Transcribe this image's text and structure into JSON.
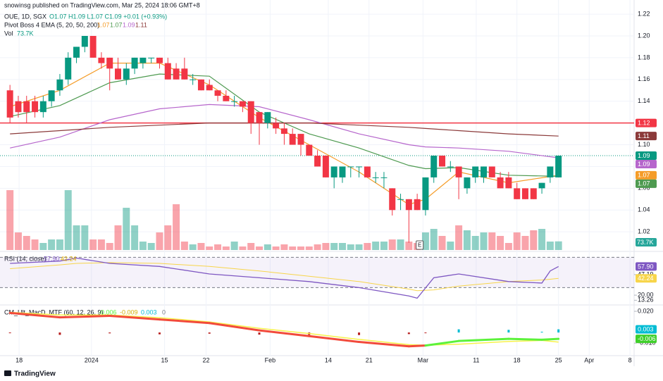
{
  "header": {
    "publisher": "snowinsg published on TradingView.com, Mar 25, 2024 18:06 GMT+8",
    "logo": "TradingView",
    "earnings_marker": "E"
  },
  "chart_data": [
    {
      "type": "candlestick",
      "symbol": "OUE, 1D, SGX",
      "ohlc_legend": "O1.07 H1.09 L1.07 C1.09 +0.01 (+0.93%)",
      "up_color": "#089981",
      "down_color": "#f23645",
      "open": [
        1.15,
        1.14,
        1.14,
        1.14,
        1.13,
        1.14,
        1.15,
        1.16,
        1.18,
        1.19,
        1.2,
        1.18,
        1.18,
        1.17,
        1.16,
        1.17,
        1.175,
        1.18,
        1.18,
        1.175,
        1.17,
        1.17,
        1.16,
        1.16,
        1.155,
        1.15,
        1.145,
        1.14,
        1.14,
        1.14,
        1.13,
        1.12,
        1.12,
        1.115,
        1.11,
        1.11,
        1.1,
        1.09,
        1.09,
        1.07,
        1.07,
        1.08,
        1.08,
        1.08,
        1.07,
        1.07,
        1.06,
        1.05,
        1.05,
        1.05,
        1.04,
        1.07,
        1.09,
        1.08,
        1.08,
        1.06,
        1.07,
        1.07,
        1.08,
        1.07,
        1.07,
        1.06,
        1.06,
        1.06,
        1.06,
        1.07,
        1.07
      ],
      "high": [
        1.155,
        1.145,
        1.145,
        1.145,
        1.145,
        1.15,
        1.165,
        1.185,
        1.19,
        1.2,
        1.2,
        1.185,
        1.18,
        1.18,
        1.175,
        1.18,
        1.18,
        1.18,
        1.18,
        1.18,
        1.175,
        1.18,
        1.165,
        1.16,
        1.16,
        1.15,
        1.15,
        1.145,
        1.14,
        1.14,
        1.13,
        1.13,
        1.125,
        1.12,
        1.115,
        1.11,
        1.1,
        1.095,
        1.09,
        1.08,
        1.08,
        1.08,
        1.08,
        1.08,
        1.075,
        1.075,
        1.06,
        1.055,
        1.05,
        1.055,
        1.07,
        1.09,
        1.09,
        1.085,
        1.08,
        1.07,
        1.08,
        1.08,
        1.08,
        1.075,
        1.075,
        1.065,
        1.06,
        1.06,
        1.065,
        1.08,
        1.09
      ],
      "low": [
        1.12,
        1.125,
        1.12,
        1.125,
        1.125,
        1.135,
        1.145,
        1.155,
        1.175,
        1.185,
        1.18,
        1.17,
        1.15,
        1.16,
        1.155,
        1.165,
        1.17,
        1.175,
        1.17,
        1.16,
        1.16,
        1.16,
        1.155,
        1.15,
        1.15,
        1.14,
        1.14,
        1.135,
        1.13,
        1.11,
        1.1,
        1.115,
        1.11,
        1.1,
        1.1,
        1.09,
        1.09,
        1.08,
        1.07,
        1.06,
        1.065,
        1.07,
        1.07,
        1.07,
        1.065,
        1.06,
        1.035,
        1.04,
        1.01,
        1.04,
        1.035,
        1.065,
        1.08,
        1.075,
        1.05,
        1.055,
        1.065,
        1.065,
        1.07,
        1.06,
        1.06,
        1.05,
        1.05,
        1.05,
        1.055,
        1.065,
        1.07
      ],
      "close": [
        1.125,
        1.13,
        1.13,
        1.13,
        1.14,
        1.15,
        1.16,
        1.18,
        1.19,
        1.2,
        1.18,
        1.175,
        1.17,
        1.16,
        1.17,
        1.18,
        1.18,
        1.18,
        1.175,
        1.16,
        1.16,
        1.16,
        1.16,
        1.15,
        1.15,
        1.145,
        1.14,
        1.14,
        1.135,
        1.12,
        1.12,
        1.13,
        1.115,
        1.11,
        1.1,
        1.1,
        1.09,
        1.08,
        1.07,
        1.08,
        1.08,
        1.08,
        1.08,
        1.07,
        1.07,
        1.07,
        1.04,
        1.05,
        1.04,
        1.04,
        1.07,
        1.09,
        1.08,
        1.08,
        1.07,
        1.07,
        1.08,
        1.08,
        1.07,
        1.06,
        1.06,
        1.05,
        1.05,
        1.05,
        1.065,
        1.08,
        1.09
      ],
      "ylim": [
        1.002,
        1.233
      ],
      "yticks": [
        1.02,
        1.04,
        1.06,
        1.08,
        {
          "value": 1.1,
          "label": "1.10"
        },
        1.12,
        1.14,
        1.16,
        1.18,
        {
          "value": 1.2,
          "label": "1.20"
        },
        1.22
      ],
      "xlim": [
        -1.2,
        75.1
      ],
      "xticks": [
        {
          "value": 1.1,
          "label": "18"
        },
        {
          "value": 9.8,
          "label": "2024"
        },
        {
          "value": 18.6,
          "label": "15"
        },
        {
          "value": 23.6,
          "label": "22"
        },
        {
          "value": 31.3,
          "label": "Feb"
        },
        {
          "value": 38.3,
          "label": "14"
        },
        {
          "value": 43.2,
          "label": "21"
        },
        {
          "value": 49.7,
          "label": "Mar"
        },
        {
          "value": 56.1,
          "label": "11"
        },
        {
          "value": 61,
          "label": "18"
        },
        {
          "value": 66,
          "label": "25"
        },
        {
          "value": 69.7,
          "label": "Apr"
        },
        {
          "value": 74.6,
          "label": "8"
        }
      ],
      "indicator": "Pivot Boss 4 EMA (5, 20, 50, 200)",
      "line_x": [
        0,
        6,
        12,
        18,
        24,
        30,
        36,
        42,
        48,
        50,
        54,
        60,
        66
      ],
      "lines": [
        {
          "color": "#f59c28",
          "legend_value": "1.07",
          "values": [
            1.135,
            1.15,
            1.175,
            1.175,
            1.155,
            1.125,
            1.1,
            1.075,
            1.045,
            1.05,
            1.075,
            1.065,
            1.072
          ]
        },
        {
          "color": "#4e9a50",
          "legend_value": "1.07",
          "values": [
            1.126,
            1.136,
            1.157,
            1.165,
            1.163,
            1.13,
            1.11,
            1.097,
            1.081,
            1.078,
            1.079,
            1.072,
            1.071
          ]
        },
        {
          "color": "#b666cc",
          "legend_value": "1.09",
          "values": [
            1.097,
            1.107,
            1.123,
            1.133,
            1.137,
            1.135,
            1.123,
            1.11,
            1.1,
            1.098,
            1.097,
            1.094,
            1.088
          ]
        },
        {
          "color": "#8b3a3a",
          "legend_value": "1.11",
          "values": [
            1.11,
            1.113,
            1.116,
            1.118,
            1.12,
            1.12,
            1.12,
            1.118,
            1.116,
            1.115,
            1.113,
            1.11,
            1.108
          ]
        }
      ],
      "hline": {
        "value": 1.12,
        "color": "#f23645"
      },
      "volume": {
        "label": "Vol",
        "value_label": "73.7K",
        "values": [
          510000,
          150000,
          120000,
          90000,
          60000,
          90000,
          90000,
          510000,
          210000,
          210000,
          90000,
          90000,
          60000,
          210000,
          360000,
          210000,
          72000,
          60000,
          150000,
          210000,
          390000,
          72000,
          48000,
          60000,
          30000,
          48000,
          30000,
          72000,
          30000,
          60000,
          30000,
          48000,
          30000,
          48000,
          30000,
          30000,
          30000,
          48000,
          60000,
          60000,
          60000,
          48000,
          48000,
          60000,
          72000,
          72000,
          90000,
          90000,
          72000,
          60000,
          150000,
          180000,
          120000,
          72000,
          210000,
          168000,
          120000,
          150000,
          150000,
          120000,
          60000,
          150000,
          120000,
          168000,
          180000,
          72000,
          73700
        ]
      }
    },
    {
      "type": "line",
      "title": "RSI (14, close)",
      "x": [
        0,
        6,
        8,
        12,
        18,
        24,
        30,
        36,
        42,
        48,
        49,
        51,
        54,
        60,
        64,
        65,
        66
      ],
      "series": [
        {
          "color": "#7e57c2",
          "value_label": "57.90",
          "values": [
            62,
            65,
            69,
            62,
            58,
            48,
            43,
            38,
            30,
            19,
            16,
            43,
            48,
            38,
            36,
            52,
            57.9
          ]
        },
        {
          "color": "#f7d54a",
          "value_label": "42.24",
          "values": [
            55,
            60,
            62,
            63,
            62,
            58,
            52,
            45,
            38,
            28,
            26,
            27,
            32,
            38,
            40,
            41,
            42.24
          ]
        }
      ],
      "ylim": [
        8,
        75
      ],
      "yticks": [
        13.26,
        {
          "value": 20,
          "label": "20.00"
        },
        47.19
      ],
      "bands": [
        30,
        70
      ]
    },
    {
      "type": "line",
      "title": "CM_Ult_MacD_MTF (60, 12, 26, 9)",
      "legend_values": [
        "-0.006",
        "-0.009",
        "0.003",
        "0"
      ],
      "x": [
        0,
        6,
        12,
        18,
        24,
        30,
        36,
        42,
        48,
        50,
        54,
        60,
        64,
        66
      ],
      "macd": [
        0.0184,
        0.0143,
        0.0157,
        0.0123,
        0.0089,
        0.002,
        -0.0034,
        -0.0089,
        -0.013,
        -0.0123,
        -0.008,
        -0.006,
        -0.0068,
        -0.006
      ],
      "signal": [
        0.019,
        0.0165,
        0.0165,
        0.014,
        0.01,
        0.004,
        -0.001,
        -0.0065,
        -0.0115,
        -0.012,
        -0.011,
        -0.0085,
        -0.0075,
        -0.009
      ],
      "histogram": [
        -0.0006,
        -0.0022,
        -0.0008,
        -0.0017,
        -0.0011,
        -0.002,
        -0.0024,
        -0.0024,
        -0.0015,
        -0.0003,
        0.003,
        0.0025,
        0.0007,
        0.003
      ],
      "up_color": "#5cf23b",
      "down_color": "#f24a3b",
      "signal_color": "#f7f24a",
      "ylim": [
        -0.0205,
        0.024
      ],
      "yticks": [
        {
          "value": 0.02,
          "label": "0.020"
        },
        {
          "value": -0.01,
          "label": "-0.010"
        }
      ]
    }
  ]
}
